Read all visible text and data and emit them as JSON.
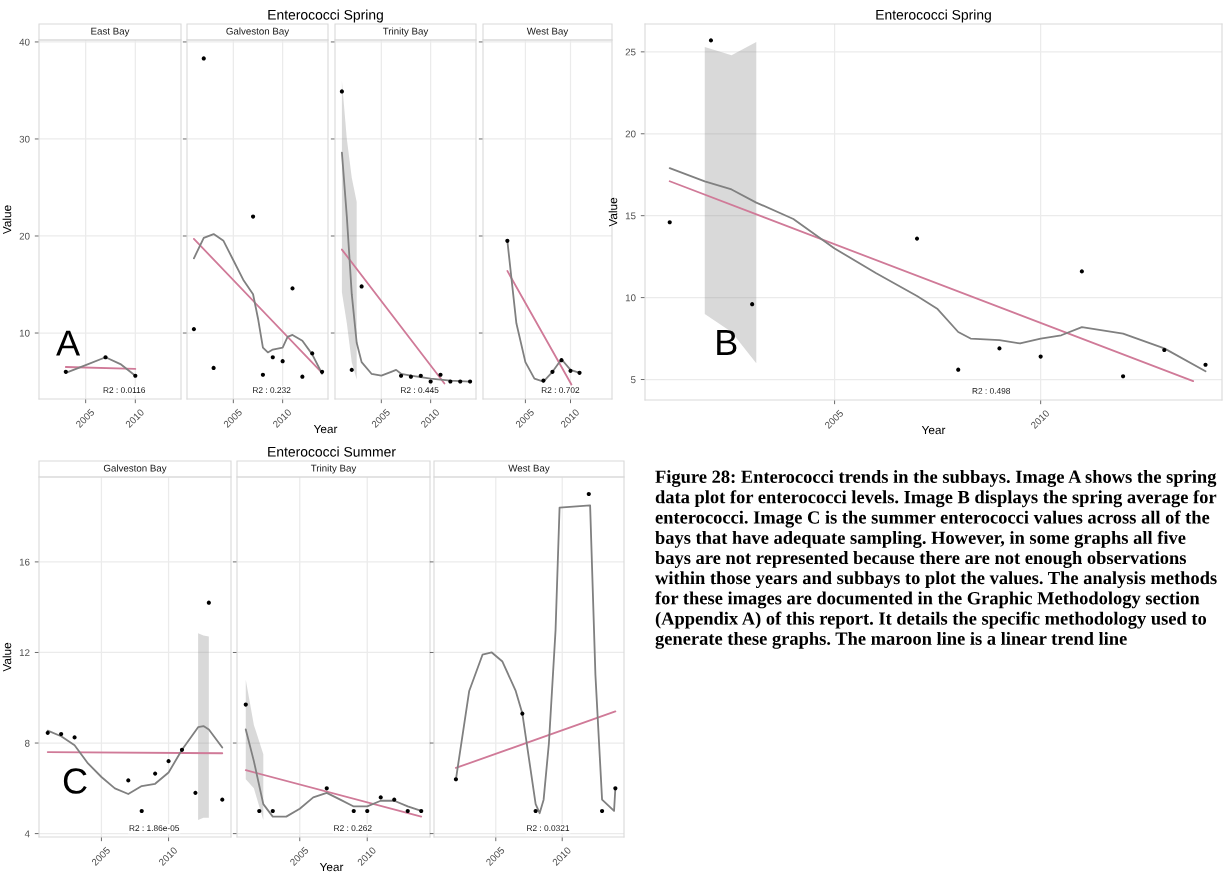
{
  "chart_data": [
    {
      "type": "scatter",
      "subtitle": "East Bay",
      "ylabel": "Value",
      "xlim": [
        2000.3,
        2014.6
      ],
      "ylim": [
        3.2,
        40.2
      ],
      "xticks": [
        2005,
        2010
      ],
      "yticks": [
        10,
        20,
        30,
        40
      ],
      "grid": true,
      "annotations": [
        "R2 : 0.0116",
        "A"
      ],
      "series": [
        {
          "type": "scatter",
          "marker": "circle",
          "color": "#000000",
          "x": [
            2003,
            2007,
            2010
          ],
          "values": [
            6.0,
            7.5,
            5.6
          ]
        },
        {
          "type": "line",
          "color": "#d07a98",
          "x": [
            2003,
            2010
          ],
          "values": [
            6.5,
            6.3
          ]
        },
        {
          "type": "line",
          "color": "#808080",
          "x": [
            2003,
            2005,
            2007,
            2008.5,
            2010
          ],
          "values": [
            5.9,
            6.7,
            7.5,
            6.8,
            5.6
          ]
        }
      ]
    },
    {
      "type": "scatter",
      "title": "Enterococci Spring",
      "subtitle": "Galveston Bay",
      "xlabel": "Year",
      "xlim": [
        2000.3,
        2014.6
      ],
      "ylim": [
        3.2,
        40.2
      ],
      "xticks": [
        2005,
        2010
      ],
      "yticks": [
        10,
        20,
        30,
        40
      ],
      "tick_labels": "x",
      "grid": true,
      "annotations": [
        "R2 : 0.232"
      ],
      "series": [
        {
          "type": "scatter",
          "marker": "circle",
          "color": "#000000",
          "x": [
            2001,
            2002,
            2003,
            2007,
            2008,
            2009,
            2010,
            2011,
            2012,
            2013,
            2014
          ],
          "values": [
            10.4,
            38.3,
            6.4,
            22.0,
            5.7,
            7.5,
            7.1,
            14.6,
            5.5,
            7.9,
            6.0
          ]
        },
        {
          "type": "line",
          "color": "#d07a98",
          "x": [
            2001,
            2014
          ],
          "values": [
            19.7,
            5.9
          ]
        },
        {
          "type": "line",
          "color": "#808080",
          "x": [
            2001,
            2002,
            2003,
            2004,
            2005,
            2006,
            2007,
            2007.5,
            2008,
            2008.5,
            2009,
            2010,
            2010.5,
            2011,
            2012,
            2013,
            2014
          ],
          "values": [
            17.7,
            19.8,
            20.2,
            19.5,
            17.5,
            15.5,
            14.0,
            11.5,
            8.5,
            8.0,
            8.3,
            8.5,
            9.6,
            9.8,
            9.2,
            7.8,
            5.8
          ]
        }
      ]
    },
    {
      "type": "scatter",
      "subtitle": "Trinity Bay",
      "xlim": [
        2000.3,
        2014.6
      ],
      "ylim": [
        3.2,
        40.2
      ],
      "xticks": [
        2005,
        2010
      ],
      "yticks": [
        10,
        20,
        30,
        40
      ],
      "tick_labels": "x",
      "grid": true,
      "annotations": [
        "R2 : 0.445"
      ],
      "series": [
        {
          "type": "scatter",
          "marker": "circle",
          "color": "#000000",
          "x": [
            2001,
            2002,
            2003,
            2007,
            2008,
            2009,
            2010,
            2011,
            2012,
            2013,
            2014
          ],
          "values": [
            34.9,
            6.2,
            14.8,
            5.6,
            5.5,
            5.6,
            5.0,
            5.7,
            5.0,
            5.0,
            5.0
          ]
        },
        {
          "type": "line",
          "color": "#d07a98",
          "x": [
            2001,
            2011.4
          ],
          "values": [
            18.6,
            4.8
          ]
        },
        {
          "type": "line",
          "color": "#808080",
          "x": [
            2001,
            2001.5,
            2002,
            2002.5,
            2003,
            2004,
            2005,
            2006,
            2006.5,
            2007,
            2008,
            2010,
            2012,
            2014
          ],
          "values": [
            28.6,
            22,
            14,
            9,
            7,
            5.8,
            5.6,
            6.0,
            6.2,
            5.8,
            5.6,
            5.3,
            5.1,
            5.0
          ],
          "upper": [
            36,
            30,
            26,
            23.5,
            null,
            null,
            null,
            null,
            null,
            null,
            null,
            null,
            null,
            null
          ],
          "lower": [
            14.2,
            11,
            7,
            5.2,
            null,
            null,
            null,
            null,
            null,
            null,
            null,
            null,
            null,
            null
          ]
        }
      ]
    },
    {
      "type": "scatter",
      "subtitle": "West Bay",
      "xlim": [
        2000.3,
        2014.6
      ],
      "ylim": [
        3.2,
        40.2
      ],
      "xticks": [
        2005,
        2010
      ],
      "yticks": [
        10,
        20,
        30,
        40
      ],
      "tick_labels": "x",
      "grid": true,
      "annotations": [
        "R2 : 0.702"
      ],
      "series": [
        {
          "type": "scatter",
          "marker": "circle",
          "color": "#000000",
          "x": [
            2003,
            2007,
            2008,
            2009,
            2010,
            2011
          ],
          "values": [
            19.5,
            5.1,
            6.0,
            7.2,
            6.1,
            5.9
          ]
        },
        {
          "type": "line",
          "color": "#d07a98",
          "x": [
            2003,
            2010.1
          ],
          "values": [
            16.4,
            4.7
          ]
        },
        {
          "type": "line",
          "color": "#808080",
          "x": [
            2003,
            2004,
            2005,
            2006,
            2007,
            2008,
            2009,
            2010,
            2011
          ],
          "values": [
            19.5,
            11,
            7,
            5.3,
            5.0,
            6.0,
            7.3,
            6.2,
            5.9
          ]
        }
      ]
    },
    {
      "type": "scatter",
      "title": "Enterococci Spring",
      "xlabel": "Year",
      "ylabel": "Value",
      "xlim": [
        2000.4,
        2014.4
      ],
      "ylim": [
        3.75,
        26.7
      ],
      "xticks": [
        2005,
        2010
      ],
      "yticks": [
        5,
        10,
        15,
        20,
        25
      ],
      "grid": true,
      "annotations": [
        "R2 : 0.498",
        "B"
      ],
      "series": [
        {
          "type": "scatter",
          "marker": "circle",
          "color": "#000000",
          "x": [
            2001,
            2002,
            2003,
            2007,
            2008,
            2009,
            2010,
            2011,
            2012,
            2013,
            2014
          ],
          "values": [
            14.6,
            25.7,
            9.6,
            13.6,
            5.6,
            6.9,
            6.4,
            11.6,
            5.2,
            6.8,
            5.9
          ]
        },
        {
          "type": "line",
          "color": "#d07a98",
          "x": [
            2001,
            2013.7
          ],
          "values": [
            17.1,
            4.9
          ]
        },
        {
          "type": "line",
          "color": "#808080",
          "x": [
            2001,
            2001.85,
            2002.5,
            2003.1,
            2004,
            2005,
            2006,
            2007,
            2007.5,
            2008,
            2008.3,
            2009,
            2009.5,
            2010,
            2010.5,
            2011,
            2012,
            2013,
            2014
          ],
          "values": [
            17.9,
            17.1,
            16.6,
            15.8,
            14.8,
            13.0,
            11.5,
            10.1,
            9.3,
            7.9,
            7.5,
            7.4,
            7.2,
            7.5,
            7.7,
            8.2,
            7.8,
            6.9,
            5.5
          ],
          "upper": [
            null,
            25.3,
            24.8,
            25.6,
            null,
            null,
            null,
            null,
            null,
            null,
            null,
            null,
            null,
            null,
            null,
            null,
            null,
            null,
            null
          ],
          "lower": [
            null,
            9.0,
            7.9,
            6.0,
            null,
            null,
            null,
            null,
            null,
            null,
            null,
            null,
            null,
            null,
            null,
            null,
            null,
            null,
            null
          ]
        }
      ]
    },
    {
      "type": "scatter",
      "subtitle": "Galveston Bay",
      "ylabel": "Value",
      "xlim": [
        2000.35,
        2014.65
      ],
      "ylim": [
        3.85,
        19.75
      ],
      "xticks": [
        2005,
        2010
      ],
      "yticks": [
        4,
        8,
        12,
        16
      ],
      "grid": true,
      "annotations": [
        "R2 : 1.86e-05",
        "C"
      ],
      "series": [
        {
          "type": "scatter",
          "marker": "circle",
          "color": "#000000",
          "x": [
            2001,
            2002,
            2003,
            2007,
            2008,
            2009,
            2010,
            2011,
            2012,
            2013,
            2014
          ],
          "values": [
            8.45,
            8.4,
            8.25,
            6.35,
            5.0,
            6.65,
            7.2,
            7.7,
            5.8,
            14.2,
            5.5
          ]
        },
        {
          "type": "line",
          "color": "#d07a98",
          "x": [
            2001,
            2014
          ],
          "values": [
            7.6,
            7.55
          ]
        },
        {
          "type": "line",
          "color": "#808080",
          "x": [
            2001,
            2002,
            2003,
            2004,
            2005,
            2006,
            2007,
            2008,
            2009,
            2010,
            2011,
            2012.2,
            2012.6,
            2013,
            2014
          ],
          "values": [
            8.55,
            8.3,
            7.9,
            7.1,
            6.5,
            6.0,
            5.75,
            6.1,
            6.2,
            6.7,
            7.7,
            8.7,
            8.75,
            8.6,
            7.8
          ],
          "upper": [
            null,
            null,
            null,
            null,
            null,
            null,
            null,
            null,
            null,
            null,
            null,
            12.85,
            12.75,
            12.7,
            null
          ],
          "lower": [
            null,
            null,
            null,
            null,
            null,
            null,
            null,
            null,
            null,
            null,
            null,
            4.6,
            4.7,
            4.7,
            null
          ]
        }
      ]
    },
    {
      "type": "scatter",
      "title": "Enterococci Summer",
      "subtitle": "Trinity Bay",
      "xlabel": "Year",
      "xlim": [
        2000.35,
        2014.65
      ],
      "ylim": [
        3.85,
        19.75
      ],
      "xticks": [
        2005,
        2010
      ],
      "yticks": [
        4,
        8,
        12,
        16
      ],
      "tick_labels": "x",
      "grid": true,
      "annotations": [
        "R2 : 0.262"
      ],
      "series": [
        {
          "type": "scatter",
          "marker": "circle",
          "color": "#000000",
          "x": [
            2001,
            2002,
            2003,
            2007,
            2009,
            2010,
            2011,
            2012,
            2013,
            2014
          ],
          "values": [
            9.7,
            5.0,
            5.0,
            6.0,
            5.0,
            5.0,
            5.6,
            5.5,
            5.0,
            5.0
          ]
        },
        {
          "type": "line",
          "color": "#d07a98",
          "x": [
            2001,
            2014
          ],
          "values": [
            6.8,
            4.75
          ]
        },
        {
          "type": "line",
          "color": "#808080",
          "x": [
            2001,
            2001.6,
            2002.3,
            2003,
            2004,
            2005,
            2006,
            2007,
            2008,
            2009,
            2010,
            2011,
            2012,
            2013,
            2014
          ],
          "values": [
            8.6,
            7.2,
            5.3,
            4.75,
            4.75,
            5.1,
            5.6,
            5.8,
            5.5,
            5.2,
            5.2,
            5.45,
            5.45,
            5.2,
            5.0
          ],
          "upper": [
            10.8,
            8.8,
            7.5,
            null,
            null,
            null,
            null,
            null,
            null,
            null,
            null,
            null,
            null,
            null,
            null
          ],
          "lower": [
            6.4,
            6.0,
            4.6,
            null,
            null,
            null,
            null,
            null,
            null,
            null,
            null,
            null,
            null,
            null,
            null
          ]
        }
      ]
    },
    {
      "type": "scatter",
      "subtitle": "West Bay",
      "xlim": [
        2000.35,
        2014.65
      ],
      "ylim": [
        3.85,
        19.75
      ],
      "xticks": [
        2005,
        2010
      ],
      "yticks": [
        4,
        8,
        12,
        16
      ],
      "tick_labels": "x",
      "grid": true,
      "annotations": [
        "R2 : 0.0321"
      ],
      "series": [
        {
          "type": "scatter",
          "marker": "circle",
          "color": "#000000",
          "x": [
            2002,
            2007,
            2008,
            2012,
            2013,
            2014
          ],
          "values": [
            6.4,
            9.3,
            5.0,
            19.0,
            5.0,
            6.0
          ]
        },
        {
          "type": "line",
          "color": "#d07a98",
          "x": [
            2002,
            2014
          ],
          "values": [
            6.9,
            9.4
          ]
        },
        {
          "type": "line",
          "color": "#808080",
          "x": [
            2002,
            2003,
            2004,
            2004.7,
            2005.5,
            2006.5,
            2007,
            2007.5,
            2008,
            2008.3,
            2008.6,
            2009,
            2009.5,
            2009.8,
            2012.1,
            2012.5,
            2013,
            2013.9,
            2014
          ],
          "values": [
            6.4,
            10.3,
            11.9,
            12.0,
            11.6,
            10.3,
            9.3,
            7.3,
            5.3,
            4.9,
            5.5,
            8.0,
            13,
            18.4,
            18.5,
            11,
            5.5,
            5.0,
            6.0
          ]
        }
      ]
    },
    {
      "type": "other",
      "annotations": [
        "Figure 28: Enterococci trends in the subbays. Image A shows the spring data plot for enterococci levels. Image B displays the spring average for enterococci. Image C is the summer enterococci values across all of the bays that have adequate sampling. However, in some graphs all five bays are not represented because there are not enough observations within those years and subbays to plot the values. The analysis methods for these images are documented in the Graphic Methodology section (Appendix A) of this report. It details the specific methodology used to generate these graphs. The maroon line is a linear trend line"
      ]
    }
  ]
}
